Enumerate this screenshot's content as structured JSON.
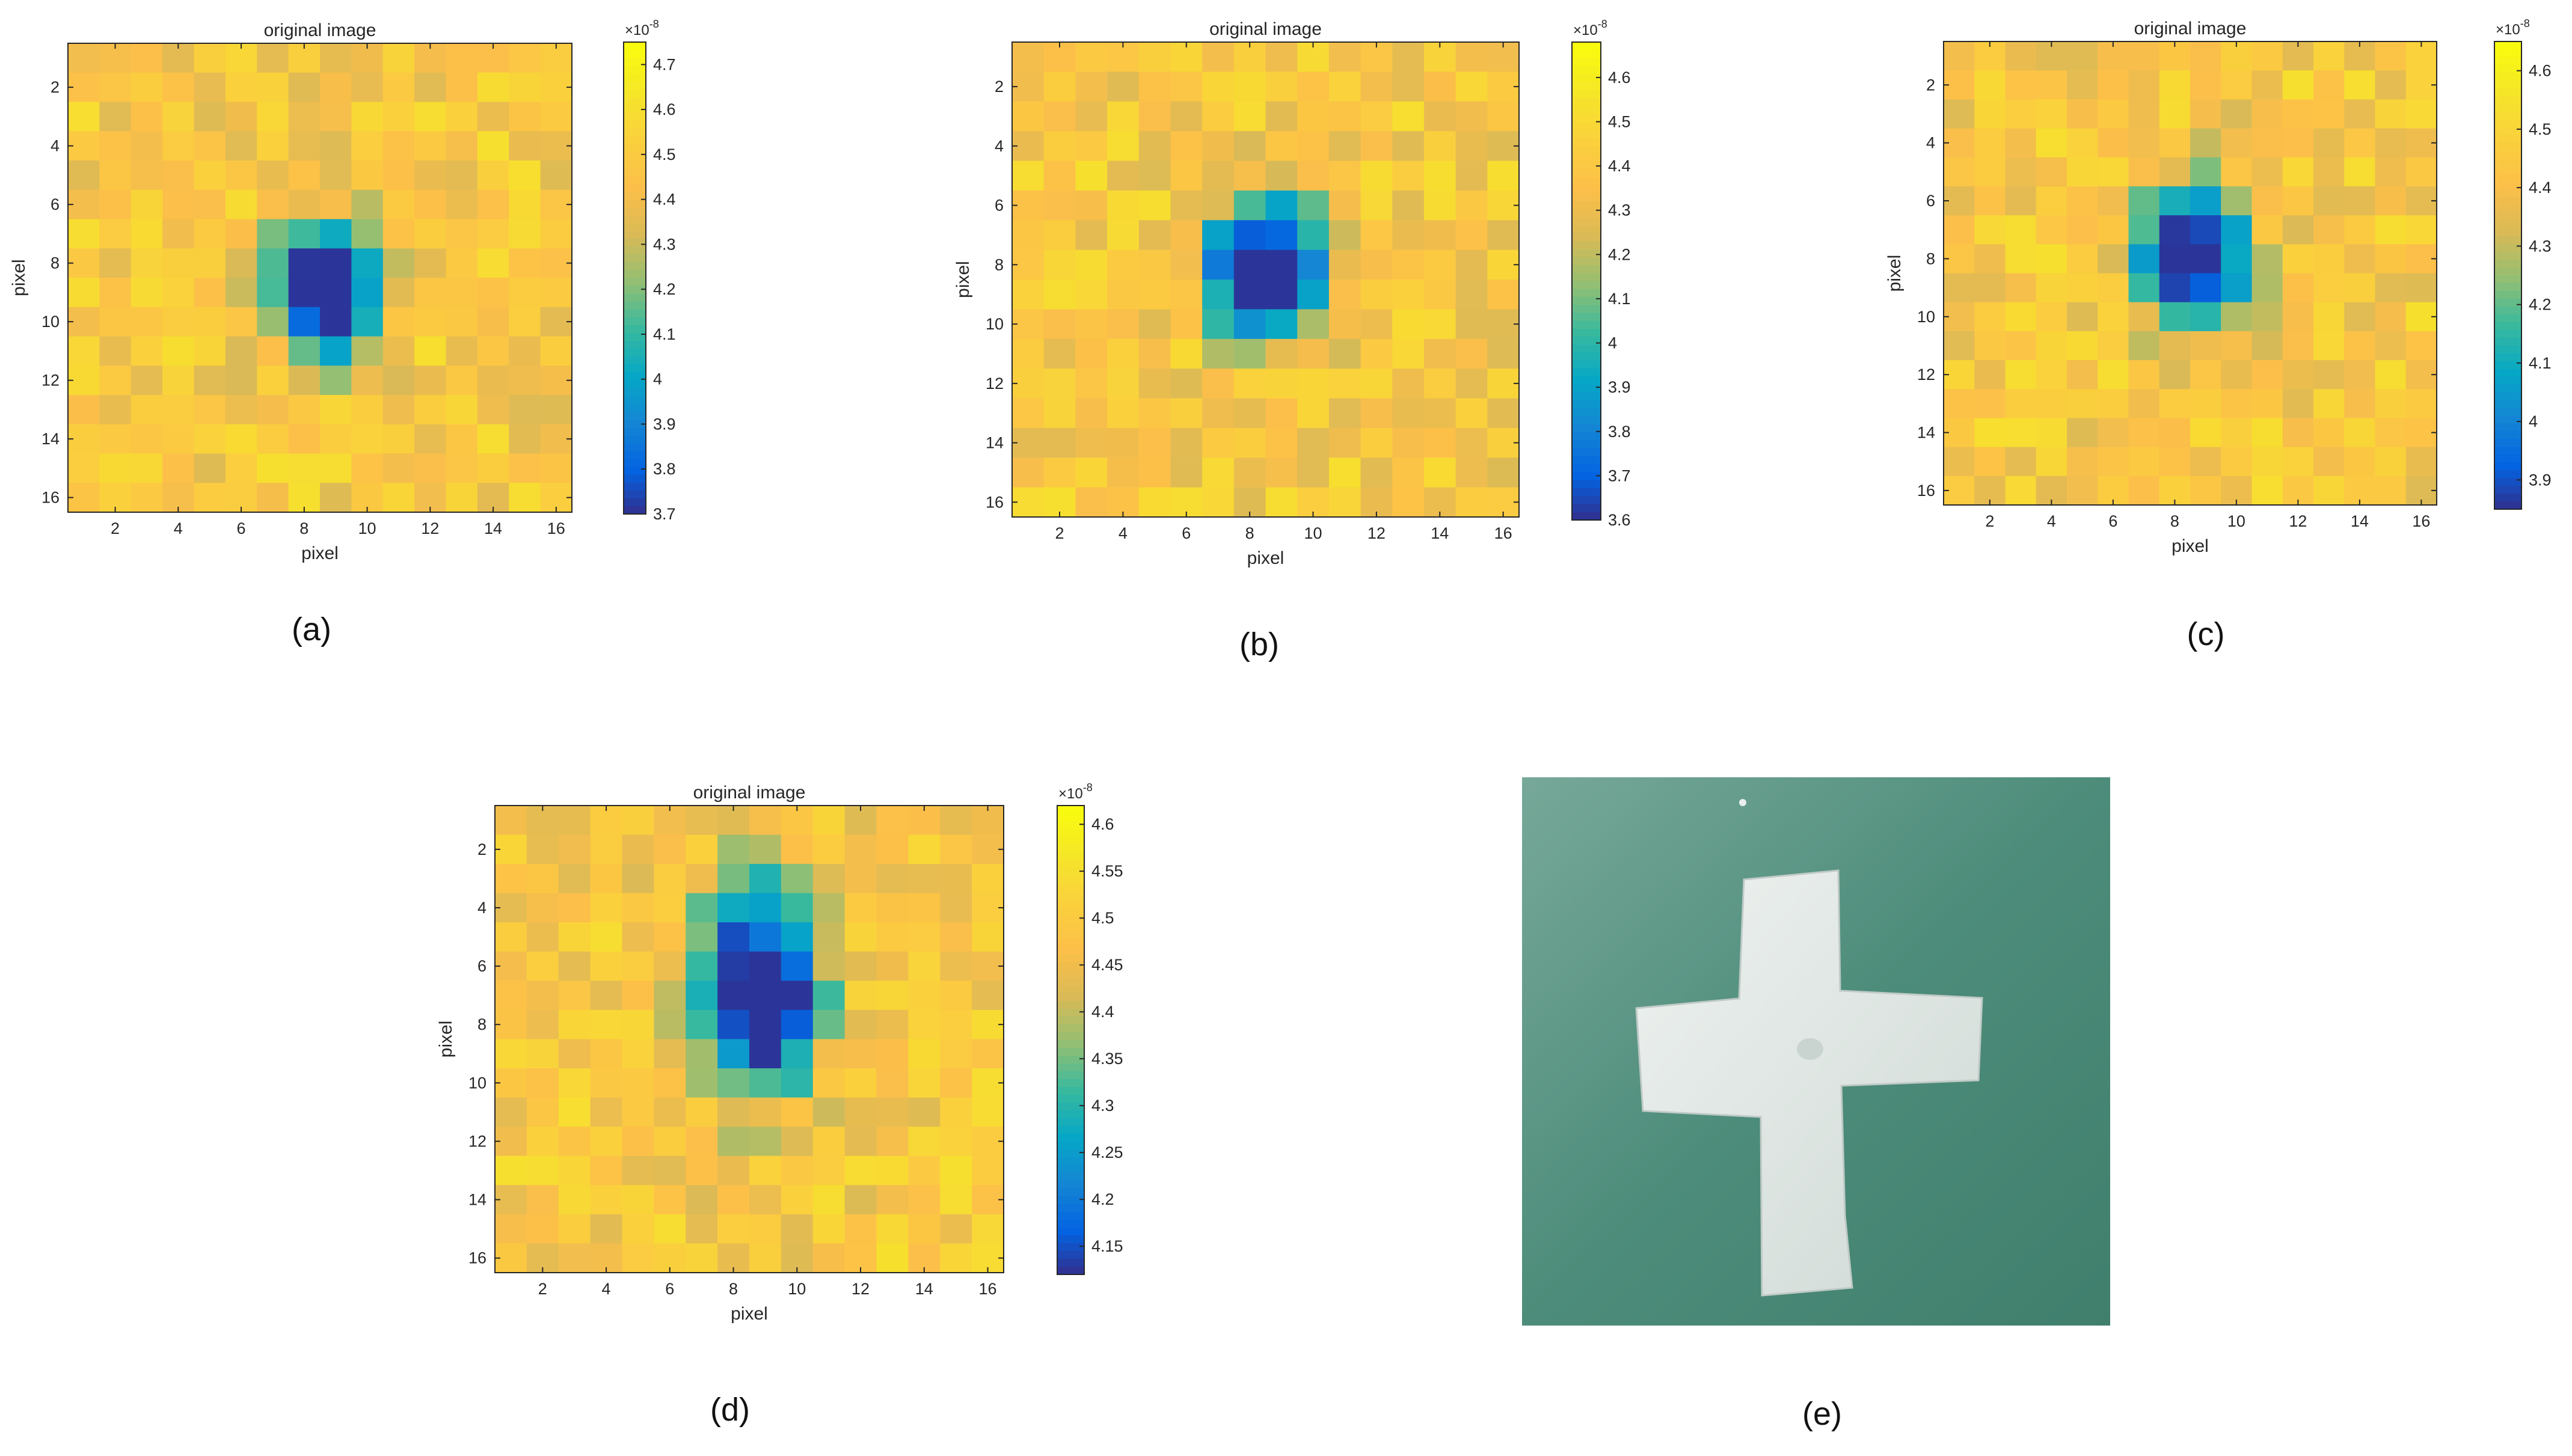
{
  "chart_data": [
    {
      "type": "heatmap",
      "panel": "(a)",
      "title": "original image",
      "xlabel": "pixel",
      "ylabel": "pixel",
      "x_ticks": [
        2,
        4,
        6,
        8,
        10,
        12,
        14,
        16
      ],
      "y_ticks": [
        2,
        4,
        6,
        8,
        10,
        12,
        14,
        16
      ],
      "grid_size": 16,
      "colorbar": {
        "min": 3.7,
        "max": 4.75,
        "ticks": [
          "3.7",
          "3.8",
          "3.9",
          "4",
          "4.1",
          "4.2",
          "4.3",
          "4.4",
          "4.5",
          "4.6",
          "4.7"
        ],
        "exponent_base": "×10",
        "exponent": "-8"
      },
      "center": [
        8.5,
        9.0
      ],
      "spread": [
        1.1,
        1.6
      ],
      "depth": 0.92,
      "seed": 11
    },
    {
      "type": "heatmap",
      "panel": "(b)",
      "title": "original image",
      "xlabel": "pixel",
      "ylabel": "pixel",
      "x_ticks": [
        2,
        4,
        6,
        8,
        10,
        12,
        14,
        16
      ],
      "y_ticks": [
        2,
        4,
        6,
        8,
        10,
        12,
        14,
        16
      ],
      "grid_size": 16,
      "colorbar": {
        "min": 3.6,
        "max": 4.68,
        "ticks": [
          "3.6",
          "3.7",
          "3.8",
          "3.9",
          "4",
          "4.1",
          "4.2",
          "4.3",
          "4.4",
          "4.5",
          "4.6"
        ],
        "exponent_base": "×10",
        "exponent": "-8"
      },
      "center": [
        8.6,
        8.2
      ],
      "spread": [
        1.3,
        1.6
      ],
      "depth": 0.95,
      "seed": 23
    },
    {
      "type": "heatmap",
      "panel": "(c)",
      "title": "original image",
      "xlabel": "pixel",
      "ylabel": "pixel",
      "x_ticks": [
        2,
        4,
        6,
        8,
        10,
        12,
        14,
        16
      ],
      "y_ticks": [
        2,
        4,
        6,
        8,
        10,
        12,
        14,
        16
      ],
      "grid_size": 16,
      "colorbar": {
        "min": 3.85,
        "max": 4.65,
        "ticks": [
          "3.9",
          "4",
          "4.1",
          "4.2",
          "4.3",
          "4.4",
          "4.5",
          "4.6"
        ],
        "exponent_base": "×10",
        "exponent": "-8"
      },
      "center": [
        8.5,
        7.8
      ],
      "spread": [
        1.2,
        1.7
      ],
      "depth": 0.95,
      "seed": 37
    },
    {
      "type": "heatmap",
      "panel": "(d)",
      "title": "original image",
      "xlabel": "pixel",
      "ylabel": "pixel",
      "x_ticks": [
        2,
        4,
        6,
        8,
        10,
        12,
        14,
        16
      ],
      "y_ticks": [
        2,
        4,
        6,
        8,
        10,
        12,
        14,
        16
      ],
      "grid_size": 16,
      "colorbar": {
        "min": 4.12,
        "max": 4.62,
        "ticks": [
          "4.15",
          "4.2",
          "4.25",
          "4.3",
          "4.35",
          "4.4",
          "4.45",
          "4.5",
          "4.55",
          "4.6"
        ],
        "exponent_base": "×10",
        "exponent": "-8"
      },
      "center": [
        8.8,
        6.8
      ],
      "spread": [
        1.3,
        2.4
      ],
      "depth": 0.95,
      "seed": 53
    }
  ],
  "photo": {
    "panel": "(e)",
    "subject": "cross-shaped-sample",
    "background_color": "#4d8c7a",
    "sample_color": "#dfe6e3"
  },
  "captions": [
    "(a)",
    "(b)",
    "(c)",
    "(d)",
    "(e)"
  ]
}
